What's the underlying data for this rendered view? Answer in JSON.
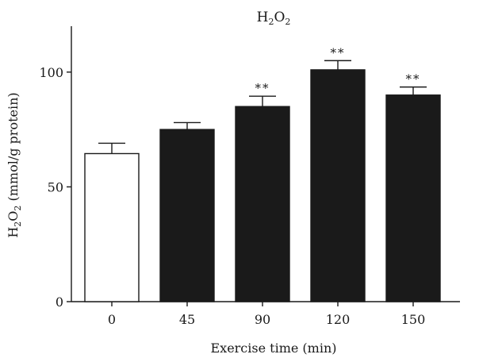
{
  "chart_data": {
    "type": "bar",
    "title": {
      "main": "H",
      "sub1": "2",
      "mid": "O",
      "sub2": "2"
    },
    "xlabel": "Exercise time (min)",
    "ylabel": {
      "main": "H",
      "sub1": "2",
      "mid": "O",
      "sub2": "2",
      "rest": " (mmol/g protein)"
    },
    "categories": [
      "0",
      "45",
      "90",
      "120",
      "150"
    ],
    "values": [
      64.5,
      75,
      85,
      101,
      90
    ],
    "errors": [
      4.5,
      3,
      4.5,
      4,
      3.5
    ],
    "significance": [
      "",
      "",
      "**",
      "**",
      "**"
    ],
    "ylim": [
      0,
      120
    ],
    "yticks": [
      0,
      50,
      100
    ],
    "bar_fill": [
      "#ffffff",
      "#1a1a1a",
      "#1a1a1a",
      "#1a1a1a",
      "#1a1a1a"
    ],
    "bar_stroke": "#1a1a1a",
    "grid": false
  }
}
